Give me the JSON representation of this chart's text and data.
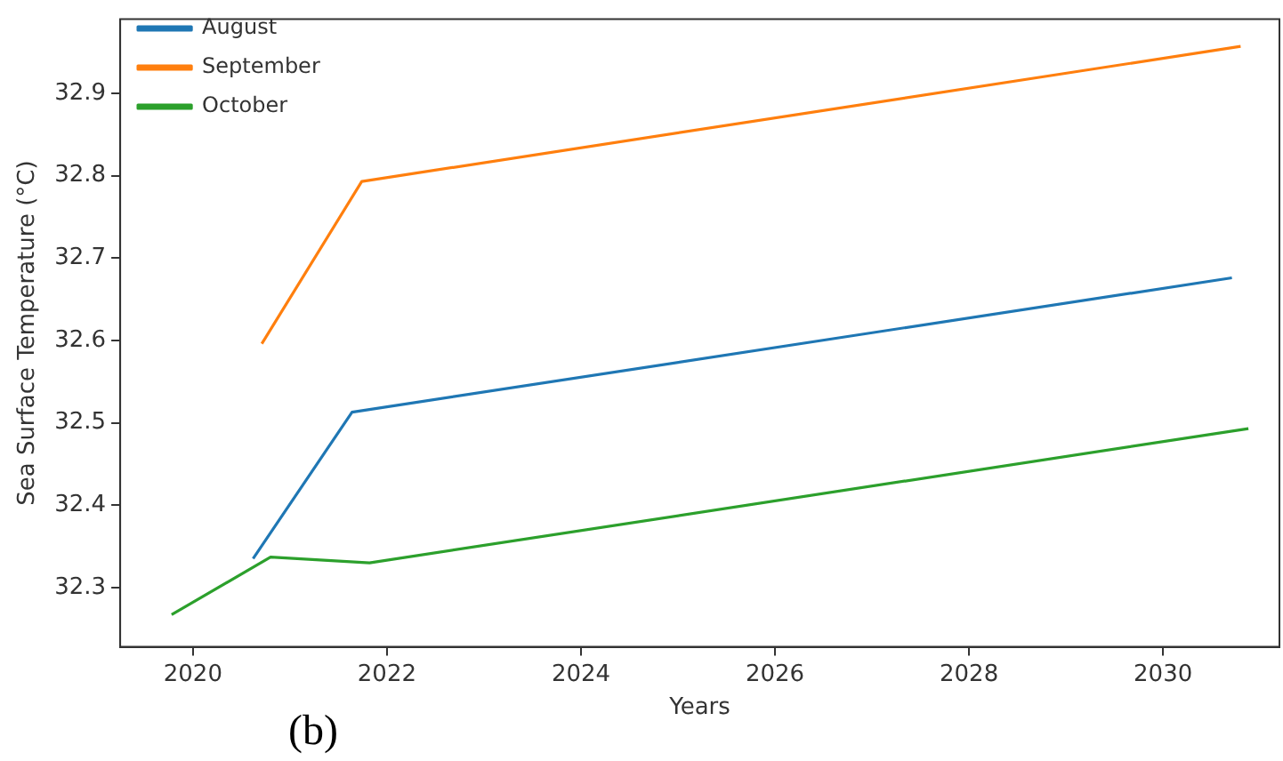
{
  "chart_data": {
    "type": "line",
    "xlabel": "Years",
    "ylabel": "Sea Surface Temperature (°C)",
    "annotations": [
      "(b)"
    ],
    "xlim": [
      2019.25,
      2031.2
    ],
    "xticks": [
      2020,
      2022,
      2024,
      2026,
      2028,
      2030
    ],
    "ylim": [
      32.228,
      32.99
    ],
    "yticks": [
      32.3,
      32.4,
      32.5,
      32.6,
      32.7,
      32.8,
      32.9
    ],
    "grid": false,
    "legend": "top left",
    "marker": "none",
    "line_style": "solid",
    "series": [
      {
        "name": "August",
        "color": "#1f77b4",
        "x": [
          2020.62,
          2021.64,
          2030.71
        ],
        "values": [
          32.335,
          32.513,
          32.676
        ]
      },
      {
        "name": "September",
        "color": "#ff7f0e",
        "x": [
          2020.71,
          2021.74,
          2030.8
        ],
        "values": [
          32.596,
          32.793,
          32.957
        ]
      },
      {
        "name": "October",
        "color": "#2ca02c",
        "x": [
          2019.78,
          2020.8,
          2021.82,
          2030.88
        ],
        "values": [
          32.267,
          32.337,
          32.33,
          32.493
        ]
      }
    ]
  }
}
